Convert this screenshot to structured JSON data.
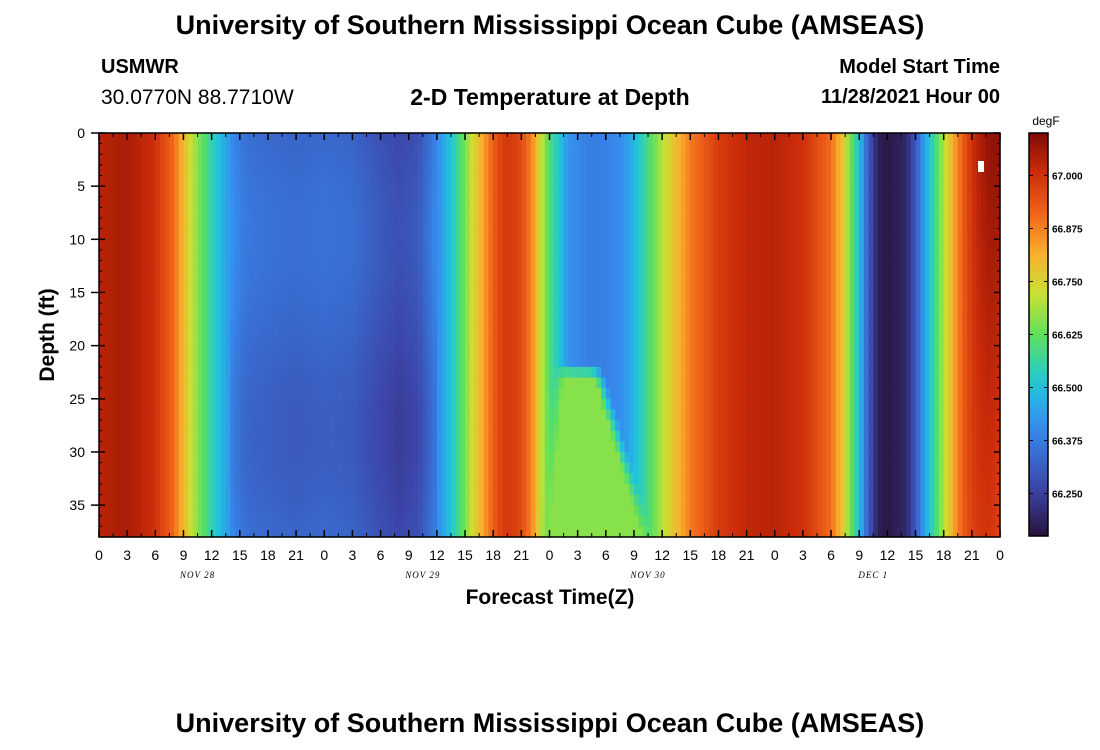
{
  "header": {
    "title": "University of Southern Mississippi Ocean Cube (AMSEAS)",
    "footer_title": "University of Southern Mississippi Ocean Cube (AMSEAS)",
    "station": "USMWR",
    "coords": "30.0770N  88.7710W",
    "model_start_label": "Model Start Time",
    "model_start_value": "11/28/2021 Hour 00"
  },
  "chart_data": {
    "type": "heatmap",
    "title": "2-D Temperature at Depth",
    "xlabel": "Forecast Time(Z)",
    "ylabel": "Depth (ft)",
    "x_tick_labels": [
      "0",
      "3",
      "6",
      "9",
      "12",
      "15",
      "18",
      "21",
      "0",
      "3",
      "6",
      "9",
      "12",
      "15",
      "18",
      "21",
      "0",
      "3",
      "6",
      "9",
      "12",
      "15",
      "18",
      "21",
      "0",
      "3",
      "6",
      "9",
      "12",
      "15",
      "18",
      "21",
      "0"
    ],
    "day_labels": [
      "NOV 28",
      "NOV 29",
      "NOV 30",
      "DEC 1"
    ],
    "xlim_hours": [
      0,
      96
    ],
    "y_ticks": [
      0,
      5,
      10,
      15,
      20,
      25,
      30,
      35
    ],
    "ylim_ft": [
      0,
      38
    ],
    "y_inverted": true,
    "colorbar": {
      "unit": "degF",
      "ticks": [
        "66.250",
        "66.375",
        "66.500",
        "66.625",
        "66.750",
        "66.875",
        "67.000"
      ],
      "range": [
        66.15,
        67.1
      ]
    },
    "surface_temperature_profile": {
      "hours": [
        0,
        3,
        6,
        8,
        9,
        10,
        12,
        14,
        15,
        16,
        18,
        21,
        24,
        27,
        30,
        32,
        34,
        36,
        38,
        40,
        42,
        43,
        44,
        45,
        46,
        48,
        50,
        52,
        54,
        56,
        58,
        60,
        63,
        66,
        69,
        72,
        75,
        78,
        79,
        80,
        81,
        82,
        83,
        84,
        85,
        86,
        87,
        88,
        90,
        91,
        92,
        93,
        94,
        95,
        96
      ],
      "values": [
        67.03,
        67.05,
        67.0,
        66.9,
        66.8,
        66.7,
        66.55,
        66.42,
        66.38,
        66.36,
        66.35,
        66.34,
        66.35,
        66.34,
        66.3,
        66.28,
        66.3,
        66.4,
        66.55,
        66.75,
        66.92,
        66.98,
        66.98,
        66.95,
        66.88,
        66.6,
        66.42,
        66.38,
        66.38,
        66.42,
        66.55,
        66.7,
        66.88,
        66.98,
        67.02,
        67.03,
        67.0,
        66.9,
        66.8,
        66.65,
        66.5,
        66.3,
        66.18,
        66.16,
        66.18,
        66.2,
        66.3,
        66.45,
        66.7,
        66.82,
        66.92,
        67.0,
        67.05,
        67.08,
        67.08
      ]
    },
    "anomaly": {
      "note_hours": [
        47,
        56
      ],
      "depth_ft": [
        22,
        38
      ],
      "value": 66.66
    }
  }
}
